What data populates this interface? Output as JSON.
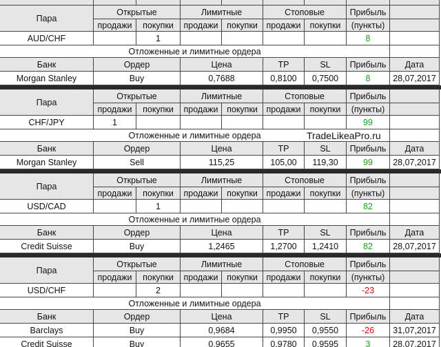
{
  "labels": {
    "pair": "Пара",
    "open": "Открытые",
    "limit": "Лимитные",
    "stop": "Стоповые",
    "profit": "Прибыль",
    "sell": "продажи",
    "buy": "покупки",
    "points": "(пункты)",
    "pending": "Отложенные и лимитные ордера",
    "bank": "Банк",
    "order": "Ордер",
    "price": "Цена",
    "tp": "TP",
    "sl": "SL",
    "date": "Дата"
  },
  "watermark": "TradeLikeaPro.ru",
  "blocks": [
    {
      "pair": "AUD/CHF",
      "open_buy": "1",
      "profit": "8",
      "orders": [
        {
          "bank": "Morgan Stanley",
          "order": "Buy",
          "price": "0,7688",
          "tp": "0,8100",
          "sl": "0,7500",
          "profit": "8",
          "date": "28,07,2017"
        }
      ]
    },
    {
      "pair": "CHF/JPY",
      "open_sell": "1",
      "profit": "99",
      "orders": [
        {
          "bank": "Morgan Stanley",
          "order": "Sell",
          "price": "115,25",
          "tp": "105,00",
          "sl": "119,30",
          "profit": "99",
          "date": "28,07,2017"
        }
      ]
    },
    {
      "pair": "USD/CAD",
      "open_buy": "1",
      "profit": "82",
      "orders": [
        {
          "bank": "Credit Suisse",
          "order": "Buy",
          "price": "1,2465",
          "tp": "1,2700",
          "sl": "1,2410",
          "profit": "82",
          "date": "28,07,2017"
        }
      ]
    },
    {
      "pair": "USD/CHF",
      "open_buy": "2",
      "profit": "-23",
      "orders": [
        {
          "bank": "Barclays",
          "order": "Buy",
          "price": "0,9684",
          "tp": "0,9950",
          "sl": "0,9550",
          "profit": "-26",
          "date": "31,07,2017"
        },
        {
          "bank": "Credit Suisse",
          "order": "Buy",
          "price": "0,9655",
          "tp": "0,9780",
          "sl": "0,9595",
          "profit": "3",
          "date": "28,07,2017"
        }
      ]
    }
  ]
}
